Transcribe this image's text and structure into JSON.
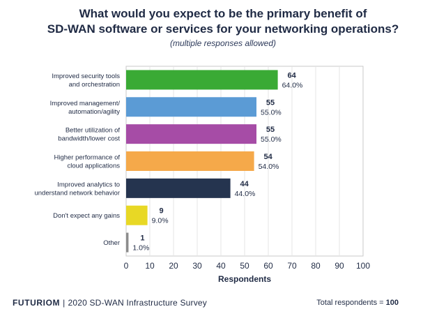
{
  "chart_data": {
    "type": "bar",
    "orientation": "horizontal",
    "title_line1": "What would you expect to be the primary benefit of",
    "title_line2": "SD-WAN software or services for your networking operations?",
    "subtitle": "(multiple responses allowed)",
    "xlabel": "Respondents",
    "xlim": [
      0,
      100
    ],
    "xticks": [
      "0",
      "10",
      "20",
      "30",
      "40",
      "50",
      "60",
      "70",
      "80",
      "90",
      "100"
    ],
    "bars": [
      {
        "label_lines": [
          "Improved security tools",
          "and orchestration"
        ],
        "value": 64,
        "value_label": "64",
        "percent_label": "64.0%",
        "color": "#3aaa35"
      },
      {
        "label_lines": [
          "Improved management/",
          "automation/agility"
        ],
        "value": 55,
        "value_label": "55",
        "percent_label": "55.0%",
        "color": "#5b9bd5"
      },
      {
        "label_lines": [
          "Better utilization of",
          "bandwidth/lower cost"
        ],
        "value": 55,
        "value_label": "55",
        "percent_label": "55.0%",
        "color": "#a64ca6"
      },
      {
        "label_lines": [
          "Higher performance of",
          "cloud applications"
        ],
        "value": 54,
        "value_label": "54",
        "percent_label": "54.0%",
        "color": "#f5a94a"
      },
      {
        "label_lines": [
          "Improved analytics to",
          "understand network behavior"
        ],
        "value": 44,
        "value_label": "44",
        "percent_label": "44.0%",
        "color": "#25344f"
      },
      {
        "label_lines": [
          "Don't expect any gains"
        ],
        "value": 9,
        "value_label": "9",
        "percent_label": "9.0%",
        "color": "#e8d825"
      },
      {
        "label_lines": [
          "Other"
        ],
        "value": 1,
        "value_label": "1",
        "percent_label": "1.0%",
        "color": "#8c8c8c"
      }
    ]
  },
  "footer": {
    "brand": "FUTURIOM",
    "separator": "|",
    "survey": "2020 SD-WAN Infrastructure Survey",
    "total_label": "Total respondents = ",
    "total_value": "100"
  }
}
